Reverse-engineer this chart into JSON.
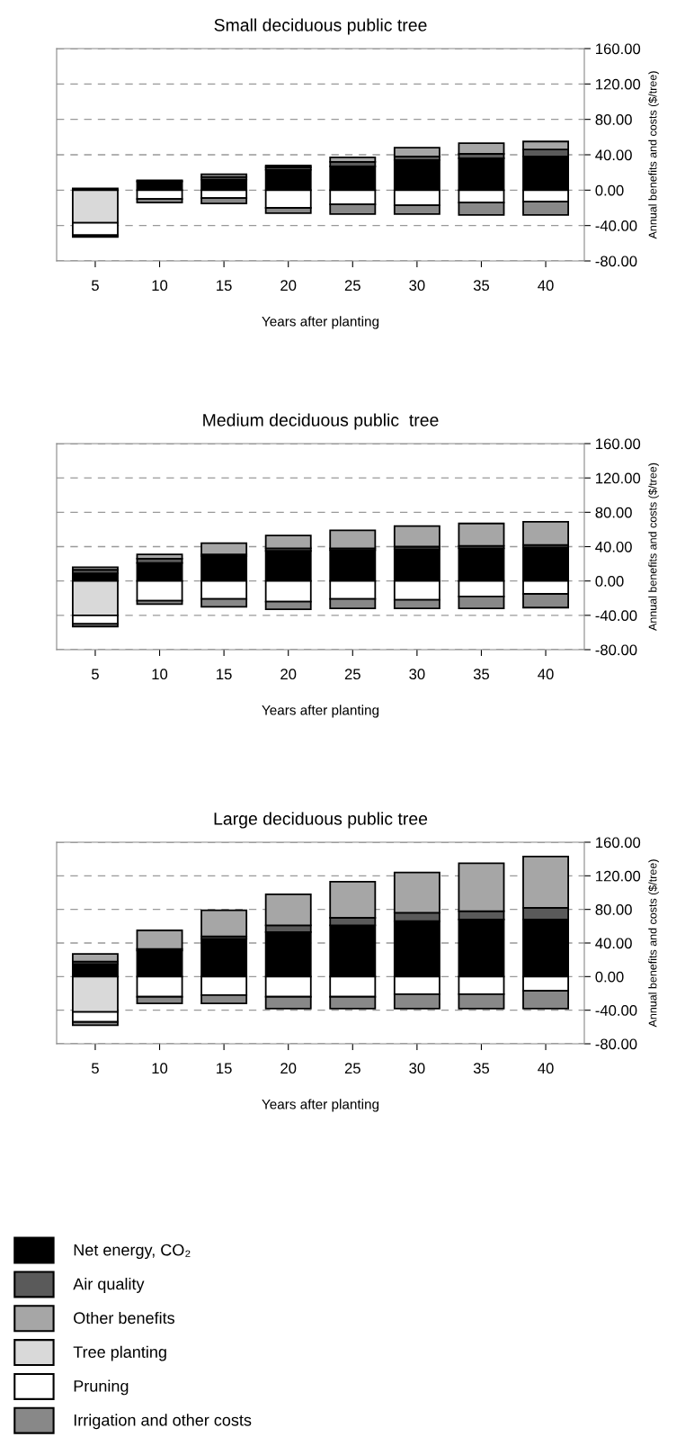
{
  "chart_data": [
    {
      "type": "bar",
      "title": "Small deciduous public tree",
      "xlabel": "Years after planting",
      "ylabel": "Annual benefits and costs ($/tree)",
      "stacked": true,
      "grid": "y",
      "legend": "bottom",
      "categories": [
        "5",
        "10",
        "15",
        "20",
        "25",
        "30",
        "35",
        "40"
      ],
      "ylim": [
        -80,
        160
      ],
      "yticks": [
        {
          "value": 160,
          "label": "160.00"
        },
        {
          "value": 120,
          "label": "120.00"
        },
        {
          "value": 80,
          "label": "80.00"
        },
        {
          "value": 40,
          "label": "40.00"
        },
        {
          "value": 0,
          "label": "0.00"
        },
        {
          "value": -40,
          "label": "-40.00"
        },
        {
          "value": -80,
          "label": "-80.00"
        }
      ],
      "series": [
        {
          "name": "Net energy, CO₂",
          "color": "#000000",
          "values": [
            2,
            10,
            12,
            23,
            27,
            34,
            36,
            38
          ]
        },
        {
          "name": "Air quality",
          "color": "#5a5a5a",
          "values": [
            null,
            1,
            3,
            3,
            5,
            4,
            5,
            8
          ]
        },
        {
          "name": "Other benefits",
          "color": "#a6a6a6",
          "values": [
            null,
            null,
            3,
            2,
            5,
            10,
            12,
            9
          ]
        },
        {
          "name": "Tree planting",
          "color": "#d9d9d9",
          "values": [
            -37,
            null,
            null,
            null,
            null,
            null,
            null,
            null
          ]
        },
        {
          "name": "Pruning",
          "color": "#ffffff",
          "values": [
            -14,
            -10,
            -9,
            -20,
            -16,
            -17,
            -14,
            -13
          ]
        },
        {
          "name": "Irrigation and other costs",
          "color": "#888888",
          "values": [
            -2,
            -4,
            -6,
            -6,
            -11,
            -10,
            -14,
            -15
          ]
        }
      ]
    },
    {
      "type": "bar",
      "title": "Medium deciduous public  tree",
      "xlabel": "Years after planting",
      "ylabel": "Annual benefits and costs ($/tree)",
      "stacked": true,
      "grid": "y",
      "categories": [
        "5",
        "10",
        "15",
        "20",
        "25",
        "30",
        "35",
        "40"
      ],
      "ylim": [
        -80,
        160
      ],
      "yticks": [
        {
          "value": 160,
          "label": "160.00"
        },
        {
          "value": 120,
          "label": "120.00"
        },
        {
          "value": 80,
          "label": "80.00"
        },
        {
          "value": 40,
          "label": "40.00"
        },
        {
          "value": 0,
          "label": "0.00"
        },
        {
          "value": -40,
          "label": "-40.00"
        },
        {
          "value": -80,
          "label": "-80.00"
        }
      ],
      "series": [
        {
          "color": "#000000",
          "values": [
            9,
            21,
            29,
            35,
            36,
            37,
            38,
            39
          ]
        },
        {
          "color": "#5a5a5a",
          "values": [
            4,
            5,
            2,
            3,
            2,
            3,
            3,
            3
          ]
        },
        {
          "color": "#a6a6a6",
          "values": [
            3,
            5,
            13,
            15,
            21,
            24,
            26,
            27
          ]
        },
        {
          "color": "#d9d9d9",
          "values": [
            -40,
            null,
            null,
            null,
            null,
            null,
            null,
            null
          ]
        },
        {
          "color": "#ffffff",
          "values": [
            -10,
            -23,
            -21,
            -24,
            -21,
            -22,
            -18,
            -15
          ]
        },
        {
          "color": "#888888",
          "values": [
            -3,
            -4,
            -9,
            -9,
            -11,
            -10,
            -14,
            -16
          ]
        }
      ]
    },
    {
      "type": "bar",
      "title": "Large deciduous public tree",
      "xlabel": "Years after planting",
      "ylabel": "Annual benefits and costs ($/tree)",
      "stacked": true,
      "grid": "y",
      "categories": [
        "5",
        "10",
        "15",
        "20",
        "25",
        "30",
        "35",
        "40"
      ],
      "ylim": [
        -80,
        160
      ],
      "yticks": [
        {
          "value": 160,
          "label": "160.00"
        },
        {
          "value": 120,
          "label": "120.00"
        },
        {
          "value": 80,
          "label": "80.00"
        },
        {
          "value": 40,
          "label": "40.00"
        },
        {
          "value": 0,
          "label": "0.00"
        },
        {
          "value": -40,
          "label": "-40.00"
        },
        {
          "value": -80,
          "label": "-80.00"
        }
      ],
      "series": [
        {
          "color": "#000000",
          "values": [
            15,
            31,
            45,
            53,
            61,
            66,
            68,
            68
          ]
        },
        {
          "color": "#5a5a5a",
          "values": [
            3,
            2,
            3,
            8,
            9,
            10,
            10,
            14
          ]
        },
        {
          "color": "#a6a6a6",
          "values": [
            9,
            22,
            31,
            37,
            43,
            48,
            57,
            61
          ]
        },
        {
          "color": "#d9d9d9",
          "values": [
            -42,
            null,
            null,
            null,
            null,
            null,
            null,
            null
          ]
        },
        {
          "color": "#ffffff",
          "values": [
            -12,
            -24,
            -22,
            -24,
            -24,
            -21,
            -21,
            -17
          ]
        },
        {
          "color": "#888888",
          "values": [
            -4,
            -8,
            -10,
            -14,
            -14,
            -17,
            -17,
            -21
          ]
        }
      ]
    }
  ]
}
